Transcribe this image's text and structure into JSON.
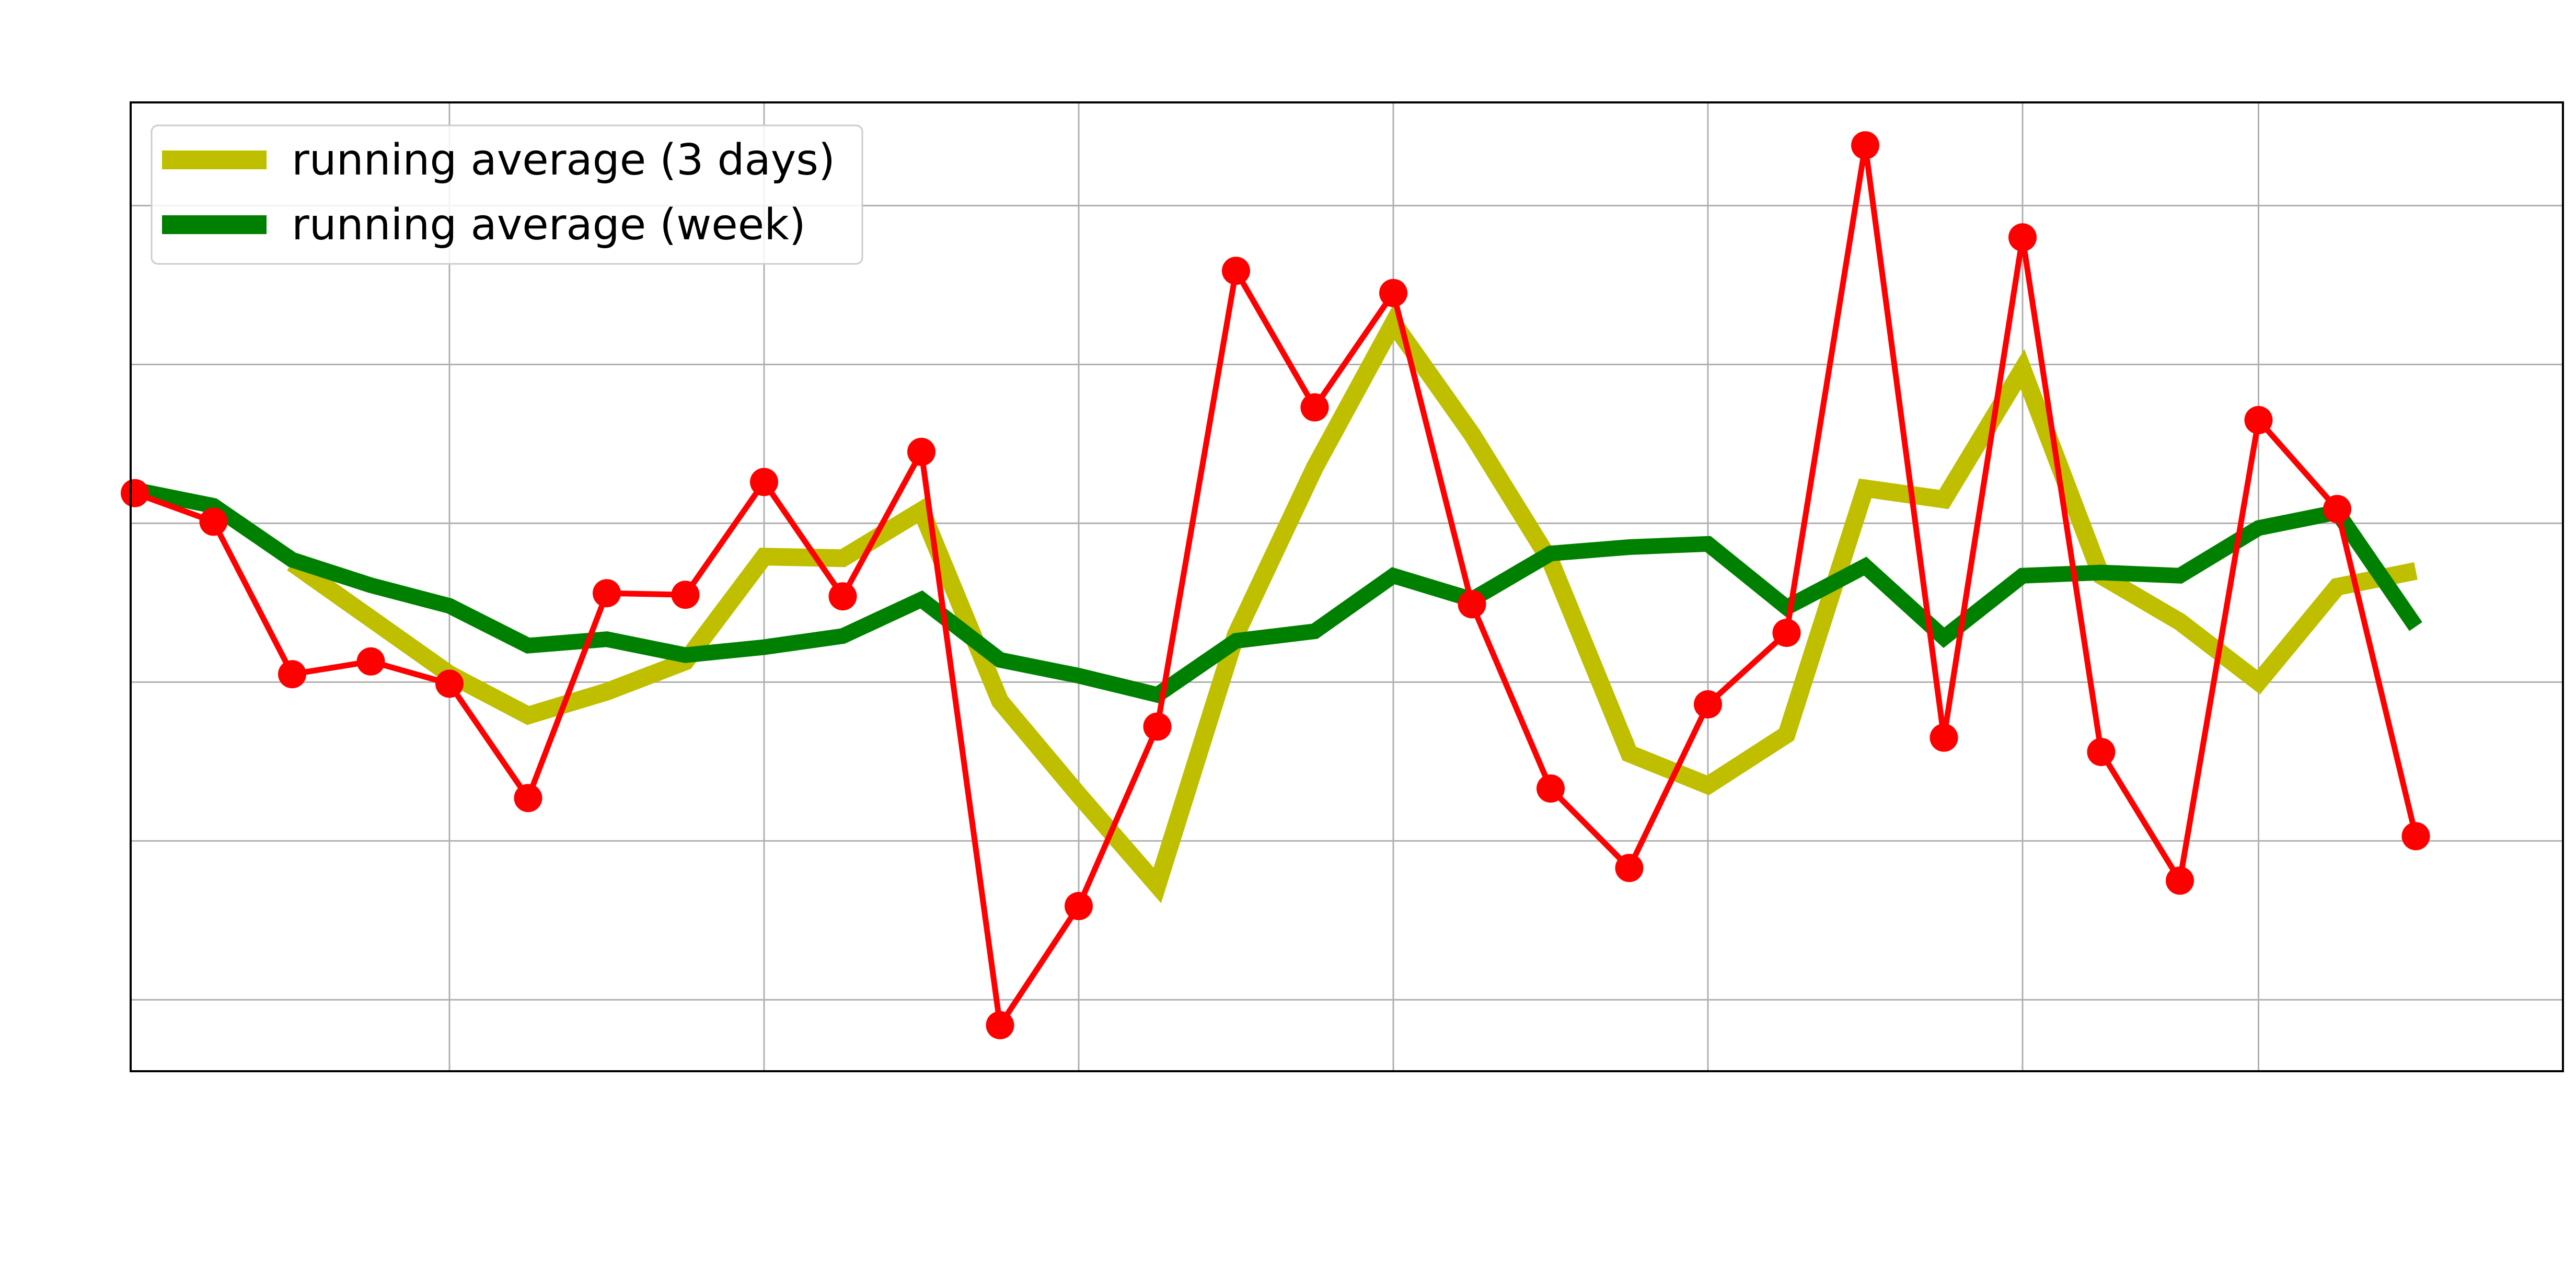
{
  "chart_data": {
    "type": "line",
    "title": "",
    "xlabel": "",
    "ylabel": "",
    "xlim": [
      0,
      31
    ],
    "ylim": [
      0,
      61
    ],
    "x_gridlines": [
      4,
      8,
      12,
      16,
      20,
      24,
      27
    ],
    "y_gridlines": [
      4.5,
      14.5,
      24.5,
      34.5,
      44.5,
      54.5
    ],
    "grid": true,
    "legend_position": "top-left",
    "series": [
      {
        "name": "",
        "kind": "daily",
        "color": "#ff0000",
        "x": [
          0,
          1,
          2,
          3,
          4,
          5,
          6,
          7,
          8,
          9,
          10,
          11,
          12,
          13,
          14,
          15,
          16,
          17,
          18,
          19,
          20,
          21,
          22,
          23,
          24,
          25,
          26,
          27,
          28,
          29
        ],
        "values": [
          36.4,
          34.6,
          25.0,
          25.8,
          24.4,
          17.2,
          30.1,
          30.0,
          37.1,
          29.9,
          39.0,
          2.9,
          10.4,
          21.7,
          50.4,
          41.8,
          49.0,
          29.4,
          17.8,
          12.8,
          23.1,
          27.6,
          58.3,
          21.0,
          52.5,
          20.1,
          12.0,
          41.0,
          35.4,
          14.8
        ]
      },
      {
        "name": "running average (3 days)",
        "kind": "avg3",
        "color": "#bfbf00",
        "x": [
          2,
          3,
          4,
          5,
          6,
          7,
          8,
          9,
          10,
          11,
          12,
          13,
          14,
          15,
          16,
          17,
          18,
          19,
          20,
          21,
          22,
          23,
          24,
          25,
          26,
          27,
          28,
          29
        ],
        "values": [
          32.0,
          28.5,
          25.0,
          22.4,
          23.9,
          25.8,
          32.4,
          32.3,
          35.3,
          23.3,
          17.4,
          11.7,
          27.5,
          38.0,
          47.1,
          40.1,
          32.1,
          20.0,
          18.0,
          21.2,
          36.7,
          36.0,
          44.2,
          31.2,
          28.3,
          24.5,
          30.5,
          31.5
        ]
      },
      {
        "name": "running average (week)",
        "kind": "week",
        "color": "#008000",
        "x": [
          0,
          1,
          2,
          3,
          4,
          5,
          6,
          7,
          8,
          9,
          10,
          11,
          12,
          13,
          14,
          15,
          16,
          17,
          18,
          19,
          20,
          21,
          22,
          23,
          24,
          25,
          26,
          27,
          28,
          29
        ],
        "values": [
          36.6,
          35.6,
          32.2,
          30.6,
          29.3,
          26.8,
          27.2,
          26.2,
          26.7,
          27.4,
          29.7,
          25.9,
          24.9,
          23.7,
          27.1,
          27.7,
          31.2,
          29.7,
          32.6,
          33.0,
          33.2,
          29.2,
          31.8,
          27.3,
          31.2,
          31.4,
          31.2,
          34.2,
          35.2,
          28.0
        ]
      }
    ]
  }
}
